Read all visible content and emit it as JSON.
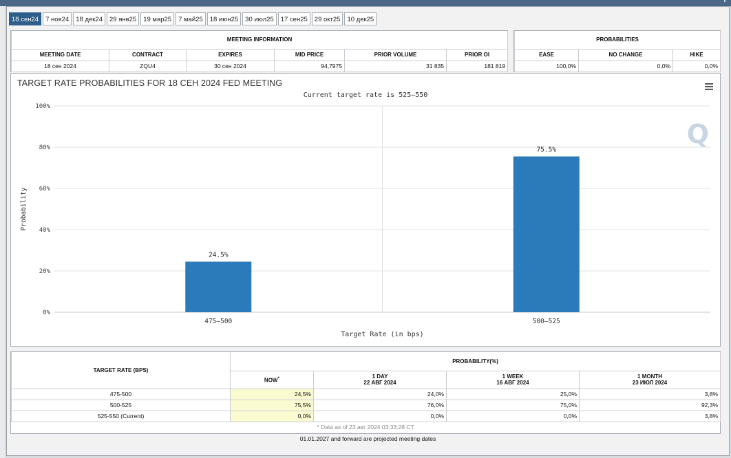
{
  "tabs": [
    "18 сен24",
    "7 ноя24",
    "18 дек24",
    "29 янв25",
    "19 мар25",
    "7 май25",
    "18 июн25",
    "30 июл25",
    "17 сен25",
    "29 окт25",
    "10 дек25"
  ],
  "meeting_info": {
    "section_title": "MEETING INFORMATION",
    "headers": [
      "MEETING DATE",
      "CONTRACT",
      "EXPIRES",
      "MID PRICE",
      "PRIOR VOLUME",
      "PRIOR OI"
    ],
    "row": [
      "18 сен 2024",
      "ZQU4",
      "30 сен 2024",
      "94,7975",
      "31 835",
      "181 819"
    ]
  },
  "probabilities": {
    "section_title": "PROBABILITIES",
    "headers": [
      "EASE",
      "NO CHANGE",
      "HIKE"
    ],
    "row": [
      "100,0%",
      "0,0%",
      "0,0%"
    ]
  },
  "chart_data": {
    "type": "bar",
    "title": "TARGET RATE PROBABILITIES FOR 18 СЕН 2024 FED MEETING",
    "subtitle": "Current target rate is 525–550",
    "categories": [
      "475–500",
      "500–525"
    ],
    "values": [
      24.5,
      75.5
    ],
    "value_labels": [
      "24.5%",
      "75.5%"
    ],
    "xlabel": "Target Rate (in bps)",
    "ylabel": "Probability",
    "ylim": [
      0,
      100
    ],
    "yticks": [
      "0%",
      "20%",
      "40%",
      "60%",
      "80%",
      "100%"
    ],
    "ytick_values": [
      0,
      20,
      40,
      60,
      80,
      100
    ],
    "grid": true,
    "bar_color": "#2b7bba"
  },
  "prob_table": {
    "target_header": "TARGET RATE (BPS)",
    "prob_header": "PROBABILITY(%)",
    "col_now": "NOW",
    "col_now_mark": "*",
    "col_1day": "1 DAY",
    "col_1day_date": "22 АВГ 2024",
    "col_1week": "1 WEEK",
    "col_1week_date": "16 АВГ 2024",
    "col_1month": "1 MONTH",
    "col_1month_date": "23 ИЮЛ 2024",
    "rows": [
      {
        "rate": "475-500",
        "now": "24,5%",
        "day": "24,0%",
        "week": "25,0%",
        "month": "3,8%"
      },
      {
        "rate": "500-525",
        "now": "75,5%",
        "day": "76,0%",
        "week": "75,0%",
        "month": "92,3%"
      },
      {
        "rate": "525-550 (Current)",
        "now": "0,0%",
        "day": "0,0%",
        "week": "0,0%",
        "month": "3,8%"
      }
    ],
    "data_as_of": "* Data as of 23 авг 2024 03:33:28 CT",
    "projected_note": "01.01.2027 and forward are projected meeting dates"
  }
}
